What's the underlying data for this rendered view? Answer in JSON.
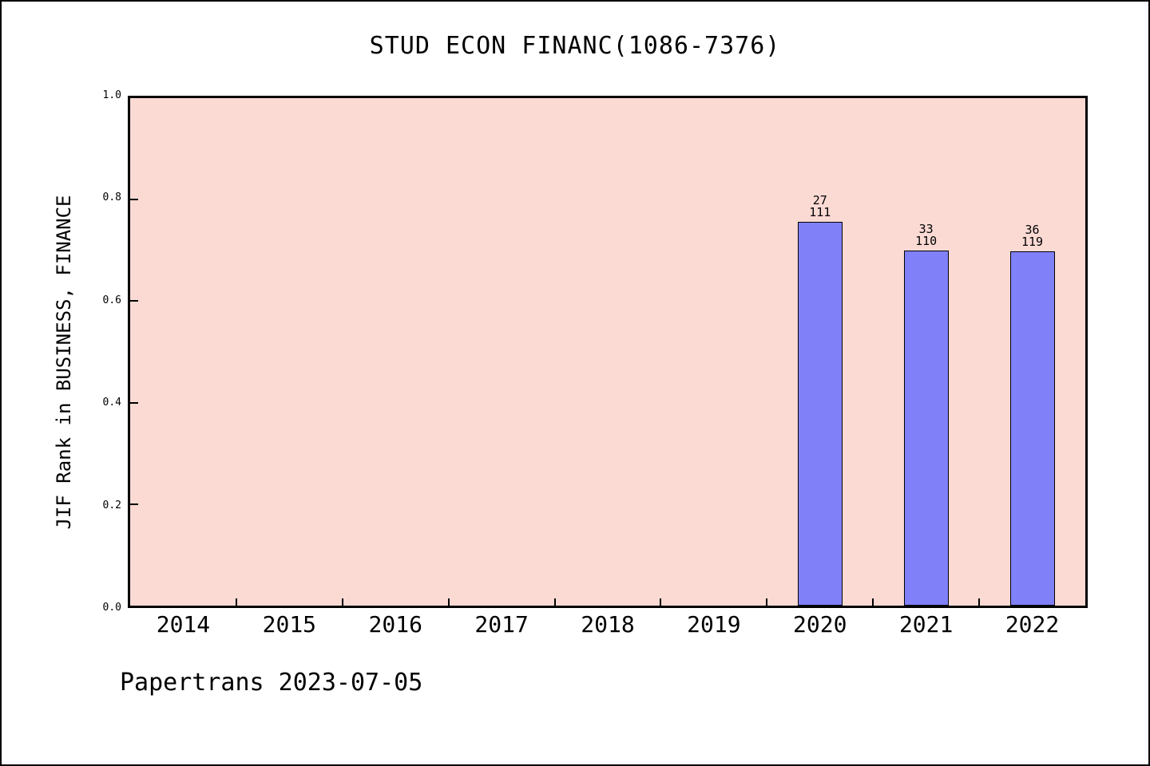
{
  "chart_data": {
    "type": "bar",
    "title": "STUD ECON FINANC(1086-7376)",
    "ylabel": "JIF Rank in BUSINESS, FINANCE",
    "xlabel": "",
    "footer": "Papertrans 2023-07-05",
    "categories": [
      "2014",
      "2015",
      "2016",
      "2017",
      "2018",
      "2019",
      "2020",
      "2021",
      "2022"
    ],
    "yticks": [
      "0.0",
      "0.2",
      "0.4",
      "0.6",
      "0.8",
      "1.0"
    ],
    "ylim": [
      0,
      1
    ],
    "grid": "off",
    "legend": "none",
    "bars": [
      {
        "category": "2020",
        "rank": "27",
        "total": "111",
        "value": 0.757
      },
      {
        "category": "2021",
        "rank": "33",
        "total": "110",
        "value": 0.7
      },
      {
        "category": "2022",
        "rank": "36",
        "total": "119",
        "value": 0.698
      }
    ],
    "colors": {
      "bar_fill": "#8080f8",
      "bar_border": "#000000",
      "plot_background": "#fcdad4",
      "axis": "#000000",
      "figure_background": "#ffffff"
    }
  }
}
